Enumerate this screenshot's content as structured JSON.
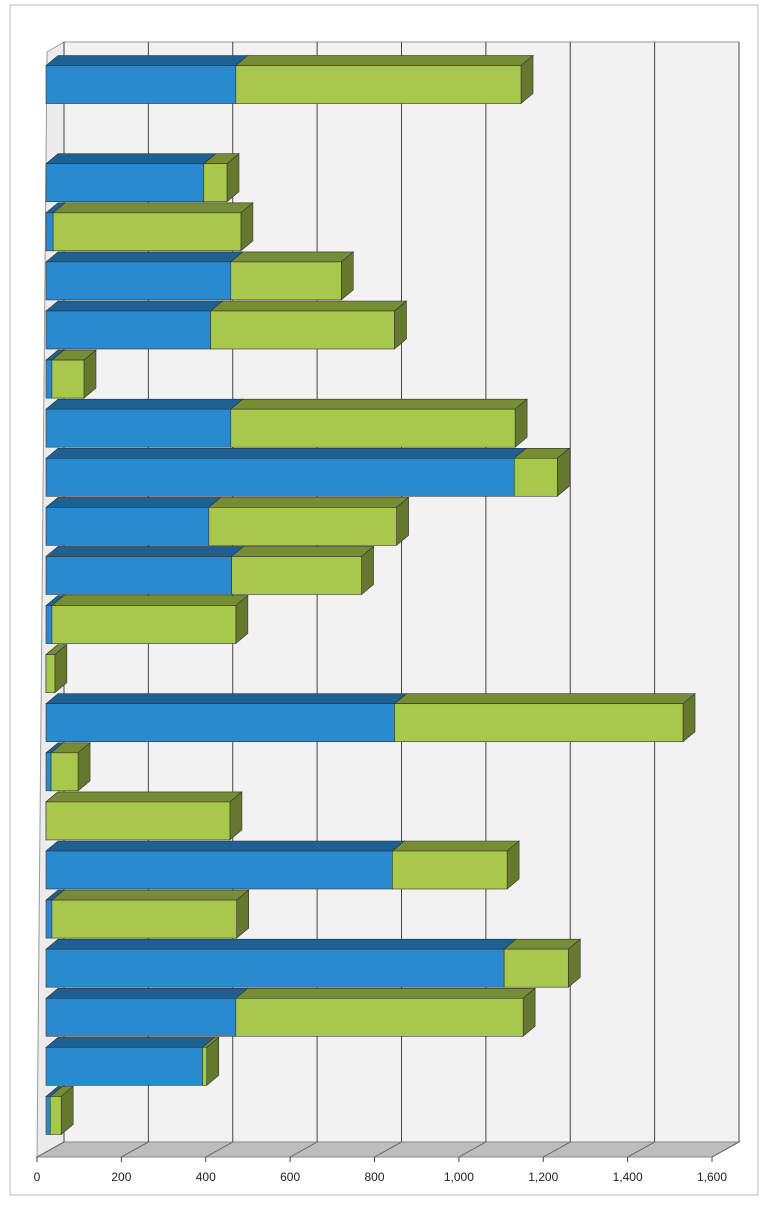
{
  "chart_data": {
    "type": "stacked-bar-3d-horizontal",
    "categories": [
      null,
      null,
      null,
      null,
      null,
      null,
      null,
      null,
      null,
      null,
      null,
      null,
      null,
      null,
      null,
      null,
      null,
      null,
      null,
      null,
      null,
      null
    ],
    "series": [
      {
        "color": "#2a8ad0",
        "values": [
          450,
          null,
          374,
          17,
          438,
          390,
          14,
          438,
          1110,
          386,
          440,
          14,
          0,
          826,
          12,
          0,
          821,
          14,
          1086,
          450,
          371,
          10
        ]
      },
      {
        "color": "#a8c84c",
        "values": [
          676,
          null,
          55,
          445,
          262,
          436,
          76,
          674,
          102,
          445,
          308,
          436,
          21,
          684,
          64,
          436,
          272,
          438,
          152,
          681,
          10,
          26
        ]
      }
    ],
    "xlim": [
      0,
      1600
    ],
    "xticks": [
      0,
      200,
      400,
      600,
      800,
      {
        "value": 1000,
        "label": "1,000"
      },
      {
        "value": 1200,
        "label": "1,200"
      },
      {
        "value": 1400,
        "label": "1,400"
      },
      {
        "value": 1600,
        "label": "1,600"
      }
    ],
    "grid": true
  }
}
